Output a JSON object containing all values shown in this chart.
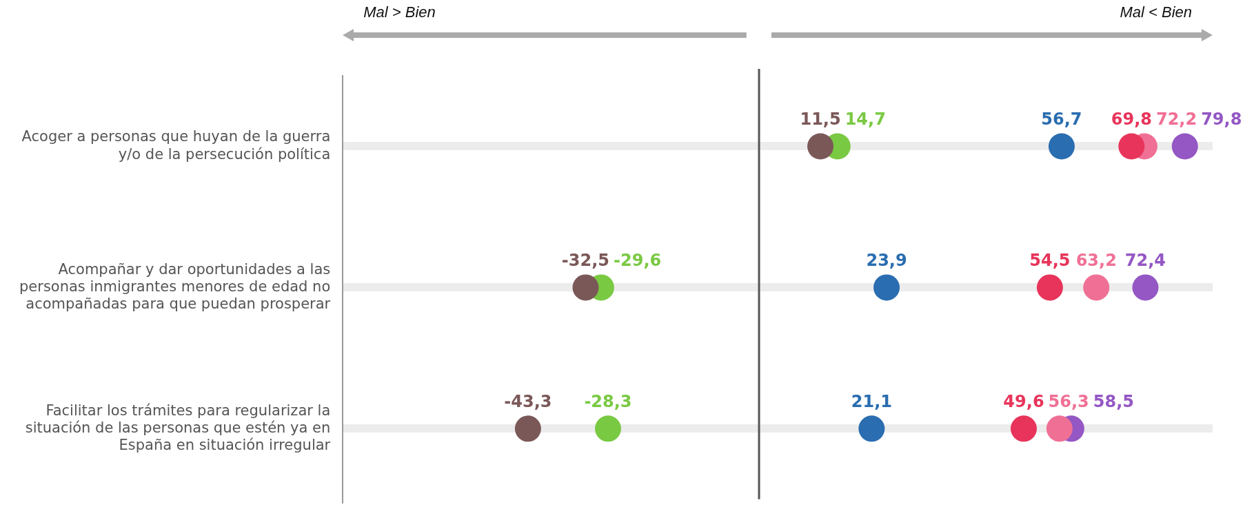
{
  "chart_data": {
    "type": "scatter",
    "orientation": "horizontal",
    "categories": [
      "Acoger a personas que huyan de la guerra y/o de la persecución política",
      "Acompañar y dar oportunidades a las personas inmigrantes menores de edad no acompañadas para que puedan prosperar",
      "Facilitar los trámites para regularizar la situación de las personas que estén ya en España en situación irregular"
    ],
    "xlim": [
      -78,
      85
    ],
    "tick_labels": "y",
    "grid": "y",
    "legend": false,
    "marker": "circle",
    "series": [
      {
        "color": "#7b5858",
        "values": [
          11.5,
          -32.5,
          -43.3
        ],
        "value_labels": [
          "11,5",
          "-32,5",
          "-43,3"
        ]
      },
      {
        "color": "#7ac943",
        "values": [
          14.7,
          -29.6,
          -28.3
        ],
        "value_labels": [
          "14,7",
          "-29,6",
          "-28,3"
        ]
      },
      {
        "color": "#2a6db0",
        "values": [
          56.7,
          23.9,
          21.1
        ],
        "value_labels": [
          "56,7",
          "23,9",
          "21,1"
        ]
      },
      {
        "color": "#e8345a",
        "values": [
          69.8,
          54.5,
          49.6
        ],
        "value_labels": [
          "69,8",
          "54,5",
          "49,6"
        ]
      },
      {
        "color": "#f07095",
        "values": [
          72.2,
          63.2,
          56.3
        ],
        "value_labels": [
          "72,2",
          "63,2",
          "56,3"
        ]
      },
      {
        "color": "#9457c4",
        "values": [
          79.8,
          72.4,
          58.5
        ],
        "value_labels": [
          "79,8",
          "72,4",
          "58,5"
        ]
      }
    ],
    "ref_lines": [
      {
        "axis": "x",
        "value": 0,
        "color": "#555555"
      }
    ],
    "annotations": [
      "Mal > Bien",
      "Mal < Bien"
    ]
  }
}
